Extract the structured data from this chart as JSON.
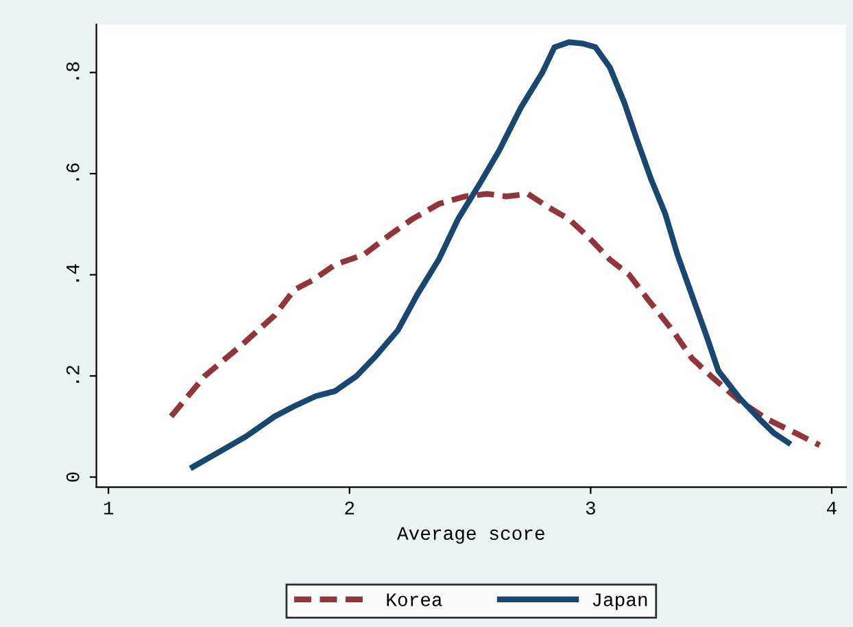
{
  "chart_data": {
    "type": "line",
    "xlabel": "Average score",
    "xlim": [
      0.95,
      4.06
    ],
    "xticks": [
      1,
      2,
      3,
      4
    ],
    "ylim": [
      -0.02,
      0.895
    ],
    "yticks": [
      0,
      {
        "value": 0.2,
        "label": ".2"
      },
      {
        "value": 0.4,
        "label": ".4"
      },
      {
        "value": 0.6,
        "label": ".6"
      },
      {
        "value": 0.8,
        "label": ".8"
      }
    ],
    "grid": false,
    "legend": "bottom",
    "marker": "none",
    "series": [
      {
        "name": "Korea",
        "color": "#90353b",
        "line_style": "dashed",
        "x": [
          1.26,
          1.4,
          1.55,
          1.69,
          1.77,
          1.85,
          1.94,
          2.06,
          2.17,
          2.26,
          2.37,
          2.48,
          2.57,
          2.65,
          2.74,
          2.82,
          2.91,
          2.99,
          3.08,
          3.16,
          3.24,
          3.34,
          3.42,
          3.51,
          3.62,
          3.73,
          3.85,
          3.95
        ],
        "values": [
          0.12,
          0.2,
          0.26,
          0.32,
          0.37,
          0.39,
          0.42,
          0.44,
          0.48,
          0.51,
          0.54,
          0.555,
          0.56,
          0.555,
          0.56,
          0.535,
          0.51,
          0.475,
          0.43,
          0.4,
          0.35,
          0.29,
          0.235,
          0.195,
          0.15,
          0.115,
          0.087,
          0.063
        ]
      },
      {
        "name": "Japan",
        "color": "#1a476f",
        "line_style": "solid",
        "x": [
          1.35,
          1.46,
          1.57,
          1.69,
          1.77,
          1.86,
          1.94,
          2.03,
          2.11,
          2.2,
          2.28,
          2.37,
          2.45,
          2.54,
          2.62,
          2.71,
          2.8,
          2.85,
          2.91,
          2.97,
          3.02,
          3.08,
          3.14,
          3.19,
          3.25,
          3.31,
          3.36,
          3.42,
          3.48,
          3.53,
          3.62,
          3.7,
          3.76,
          3.82
        ],
        "values": [
          0.02,
          0.05,
          0.08,
          0.12,
          0.14,
          0.16,
          0.17,
          0.2,
          0.24,
          0.29,
          0.36,
          0.43,
          0.51,
          0.58,
          0.645,
          0.73,
          0.8,
          0.85,
          0.86,
          0.857,
          0.85,
          0.81,
          0.74,
          0.67,
          0.59,
          0.52,
          0.44,
          0.36,
          0.28,
          0.21,
          0.155,
          0.115,
          0.087,
          0.068
        ]
      }
    ]
  }
}
